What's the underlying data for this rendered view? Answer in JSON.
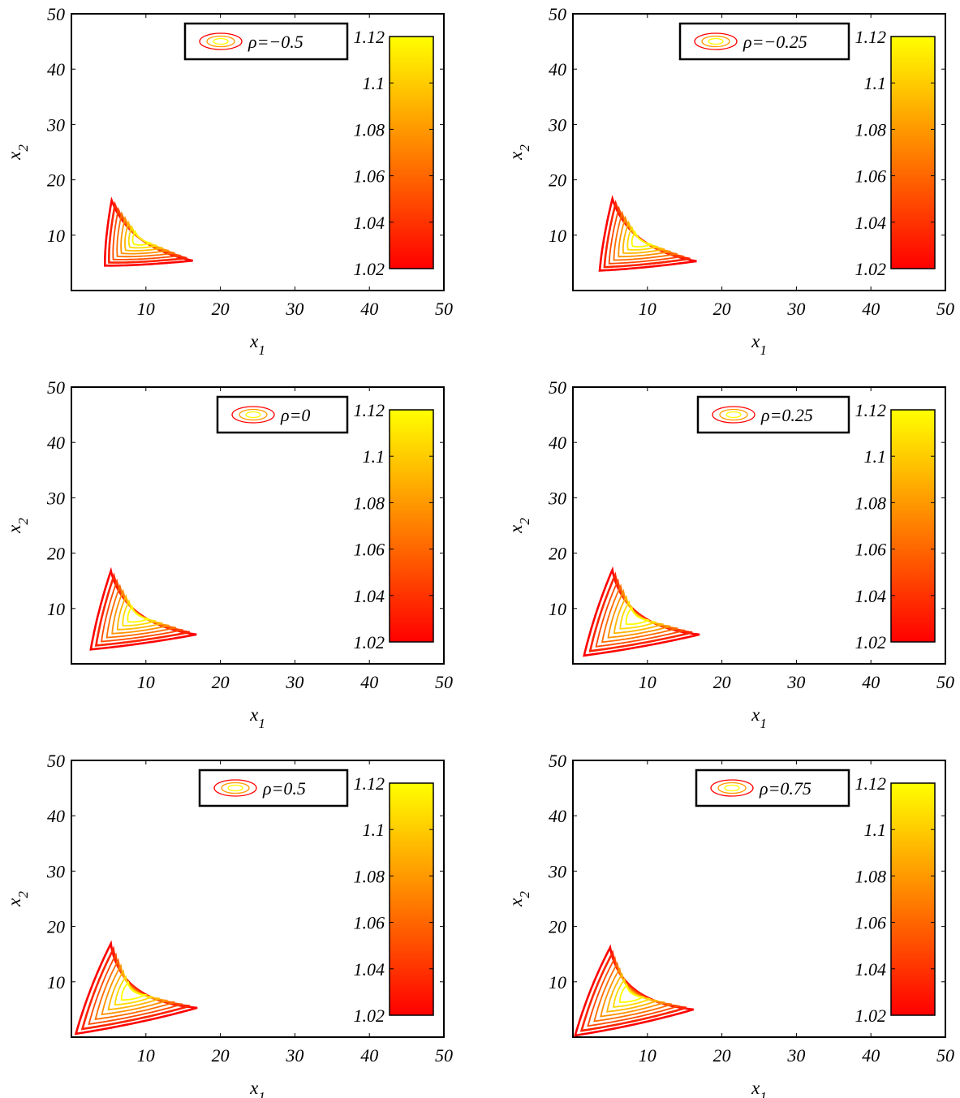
{
  "colormap": {
    "name": "autumn",
    "low": "#ff0000",
    "high": "#ffff00"
  },
  "chart_data": [
    {
      "type": "contour",
      "legend": {
        "prefix": "ρ",
        "value": "=−0.5",
        "placement": "top-right"
      },
      "xlabel": "x",
      "xlabel_sub": "1",
      "ylabel": "x",
      "ylabel_sub": "2",
      "xlim": [
        0,
        50
      ],
      "ylim": [
        0,
        50
      ],
      "x_ticks": [
        "10",
        "20",
        "30",
        "40",
        "50"
      ],
      "y_ticks": [
        "10",
        "20",
        "30",
        "40",
        "50"
      ],
      "colorbar": {
        "range": [
          1.02,
          1.12
        ],
        "ticks": [
          "1.02",
          "1.04",
          "1.06",
          "1.08",
          "1.1",
          "1.12"
        ]
      },
      "contour_extent": {
        "tip_x": [
          16.3,
          5.4
        ],
        "tip_y": [
          5.4,
          16.3
        ],
        "corner": [
          4.5,
          4.5
        ]
      }
    },
    {
      "type": "contour",
      "legend": {
        "prefix": "ρ",
        "value": "=−0.25",
        "placement": "top-right"
      },
      "xlabel": "x",
      "xlabel_sub": "1",
      "ylabel": "x",
      "ylabel_sub": "2",
      "xlim": [
        0,
        50
      ],
      "ylim": [
        0,
        50
      ],
      "x_ticks": [
        "10",
        "20",
        "30",
        "40",
        "50"
      ],
      "y_ticks": [
        "10",
        "20",
        "30",
        "40",
        "50"
      ],
      "colorbar": {
        "range": [
          1.02,
          1.12
        ],
        "ticks": [
          "1.02",
          "1.04",
          "1.06",
          "1.08",
          "1.1",
          "1.12"
        ]
      },
      "contour_extent": {
        "tip_x": [
          16.6,
          5.3
        ],
        "tip_y": [
          5.3,
          16.6
        ],
        "corner": [
          3.6,
          3.6
        ]
      }
    },
    {
      "type": "contour",
      "legend": {
        "prefix": "ρ",
        "value": "=0",
        "placement": "top-right"
      },
      "xlabel": "x",
      "xlabel_sub": "1",
      "ylabel": "x",
      "ylabel_sub": "2",
      "xlim": [
        0,
        50
      ],
      "ylim": [
        0,
        50
      ],
      "x_ticks": [
        "10",
        "20",
        "30",
        "40",
        "50"
      ],
      "y_ticks": [
        "10",
        "20",
        "30",
        "40",
        "50"
      ],
      "colorbar": {
        "range": [
          1.02,
          1.12
        ],
        "ticks": [
          "1.02",
          "1.04",
          "1.06",
          "1.08",
          "1.1",
          "1.12"
        ]
      },
      "contour_extent": {
        "tip_x": [
          16.8,
          5.3
        ],
        "tip_y": [
          5.3,
          16.8
        ],
        "corner": [
          2.6,
          2.6
        ]
      }
    },
    {
      "type": "contour",
      "legend": {
        "prefix": "ρ",
        "value": "=0.25",
        "placement": "top-right"
      },
      "xlabel": "x",
      "xlabel_sub": "1",
      "ylabel": "x",
      "ylabel_sub": "2",
      "xlim": [
        0,
        50
      ],
      "ylim": [
        0,
        50
      ],
      "x_ticks": [
        "10",
        "20",
        "30",
        "40",
        "50"
      ],
      "y_ticks": [
        "10",
        "20",
        "30",
        "40",
        "50"
      ],
      "colorbar": {
        "range": [
          1.02,
          1.12
        ],
        "ticks": [
          "1.02",
          "1.04",
          "1.06",
          "1.08",
          "1.1",
          "1.12"
        ]
      },
      "contour_extent": {
        "tip_x": [
          17.0,
          5.3
        ],
        "tip_y": [
          5.3,
          17.0
        ],
        "corner": [
          1.5,
          1.5
        ]
      }
    },
    {
      "type": "contour",
      "legend": {
        "prefix": "ρ",
        "value": "=0.5",
        "placement": "top-right"
      },
      "xlabel": "x",
      "xlabel_sub": "1",
      "ylabel": "x",
      "ylabel_sub": "2",
      "xlim": [
        0,
        50
      ],
      "ylim": [
        0,
        50
      ],
      "x_ticks": [
        "10",
        "20",
        "30",
        "40",
        "50"
      ],
      "y_ticks": [
        "10",
        "20",
        "30",
        "40",
        "50"
      ],
      "colorbar": {
        "range": [
          1.02,
          1.12
        ],
        "ticks": [
          "1.02",
          "1.04",
          "1.06",
          "1.08",
          "1.1",
          "1.12"
        ]
      },
      "contour_extent": {
        "tip_x": [
          16.9,
          5.3
        ],
        "tip_y": [
          5.3,
          16.9
        ],
        "corner": [
          0.6,
          0.6
        ]
      }
    },
    {
      "type": "contour",
      "legend": {
        "prefix": "ρ",
        "value": "=0.75",
        "placement": "top-right"
      },
      "xlabel": "x",
      "xlabel_sub": "1",
      "ylabel": "x",
      "ylabel_sub": "2",
      "xlim": [
        0,
        50
      ],
      "ylim": [
        0,
        50
      ],
      "x_ticks": [
        "10",
        "20",
        "30",
        "40",
        "50"
      ],
      "y_ticks": [
        "10",
        "20",
        "30",
        "40",
        "50"
      ],
      "colorbar": {
        "range": [
          1.02,
          1.12
        ],
        "ticks": [
          "1.02",
          "1.04",
          "1.06",
          "1.08",
          "1.1",
          "1.12"
        ]
      },
      "contour_extent": {
        "tip_x": [
          16.2,
          5.0
        ],
        "tip_y": [
          5.0,
          16.2
        ],
        "corner": [
          0.3,
          0.3
        ]
      }
    }
  ]
}
